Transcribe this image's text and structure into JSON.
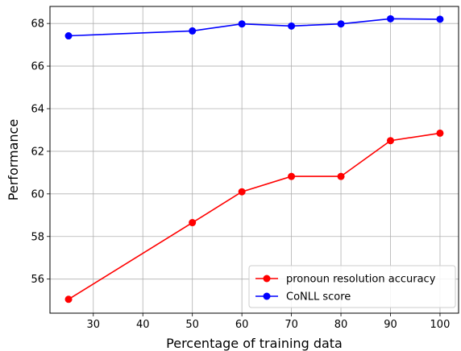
{
  "chart_data": {
    "type": "line",
    "title": "",
    "xlabel": "Percentage of training data",
    "ylabel": "Performance",
    "xlim": [
      21.25,
      103.75
    ],
    "ylim": [
      54.4,
      68.8
    ],
    "xticks": [
      30,
      40,
      50,
      60,
      70,
      80,
      90,
      100
    ],
    "yticks": [
      56,
      58,
      60,
      62,
      64,
      66,
      68
    ],
    "grid": true,
    "legend_position": "lower-right",
    "series": [
      {
        "name": "pronoun resolution accuracy",
        "color": "#ff0000",
        "x": [
          25,
          50,
          60,
          70,
          80,
          90,
          100
        ],
        "y": [
          55.05,
          58.65,
          60.1,
          60.82,
          60.82,
          62.5,
          62.85
        ]
      },
      {
        "name": "CoNLL score",
        "color": "#0000ff",
        "x": [
          25,
          50,
          60,
          70,
          80,
          90,
          100
        ],
        "y": [
          67.42,
          67.65,
          67.98,
          67.88,
          67.98,
          68.22,
          68.2
        ]
      }
    ]
  }
}
